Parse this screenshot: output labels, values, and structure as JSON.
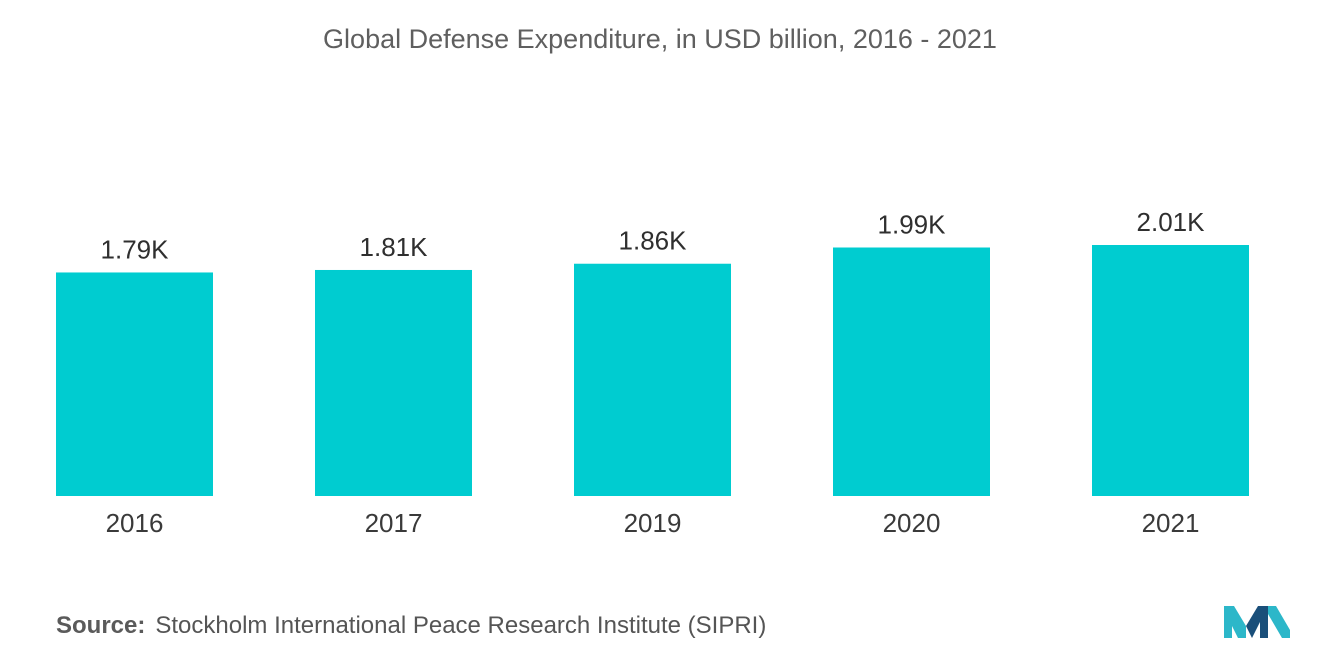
{
  "chart_data": {
    "type": "bar",
    "title": "Global Defense Expenditure, in USD billion, 2016 - 2021",
    "categories": [
      "2016",
      "2017",
      "2019",
      "2020",
      "2021"
    ],
    "values": [
      1790,
      1810,
      1860,
      1990,
      2010
    ],
    "value_labels": [
      "1.79K",
      "1.81K",
      "1.86K",
      "1.99K",
      "2.01K"
    ],
    "xlabel": "",
    "ylabel": "",
    "ylim": [
      0,
      2010
    ],
    "grid": false,
    "legend": "none",
    "bar_color": "#00ccd0"
  },
  "source": {
    "label": "Source:",
    "text": "Stockholm International Peace Research Institute (SIPRI)"
  },
  "logo": {
    "icon": "mordor-intelligence-logo-icon",
    "colors": [
      "#2cb7c9",
      "#1a4f7a"
    ]
  }
}
